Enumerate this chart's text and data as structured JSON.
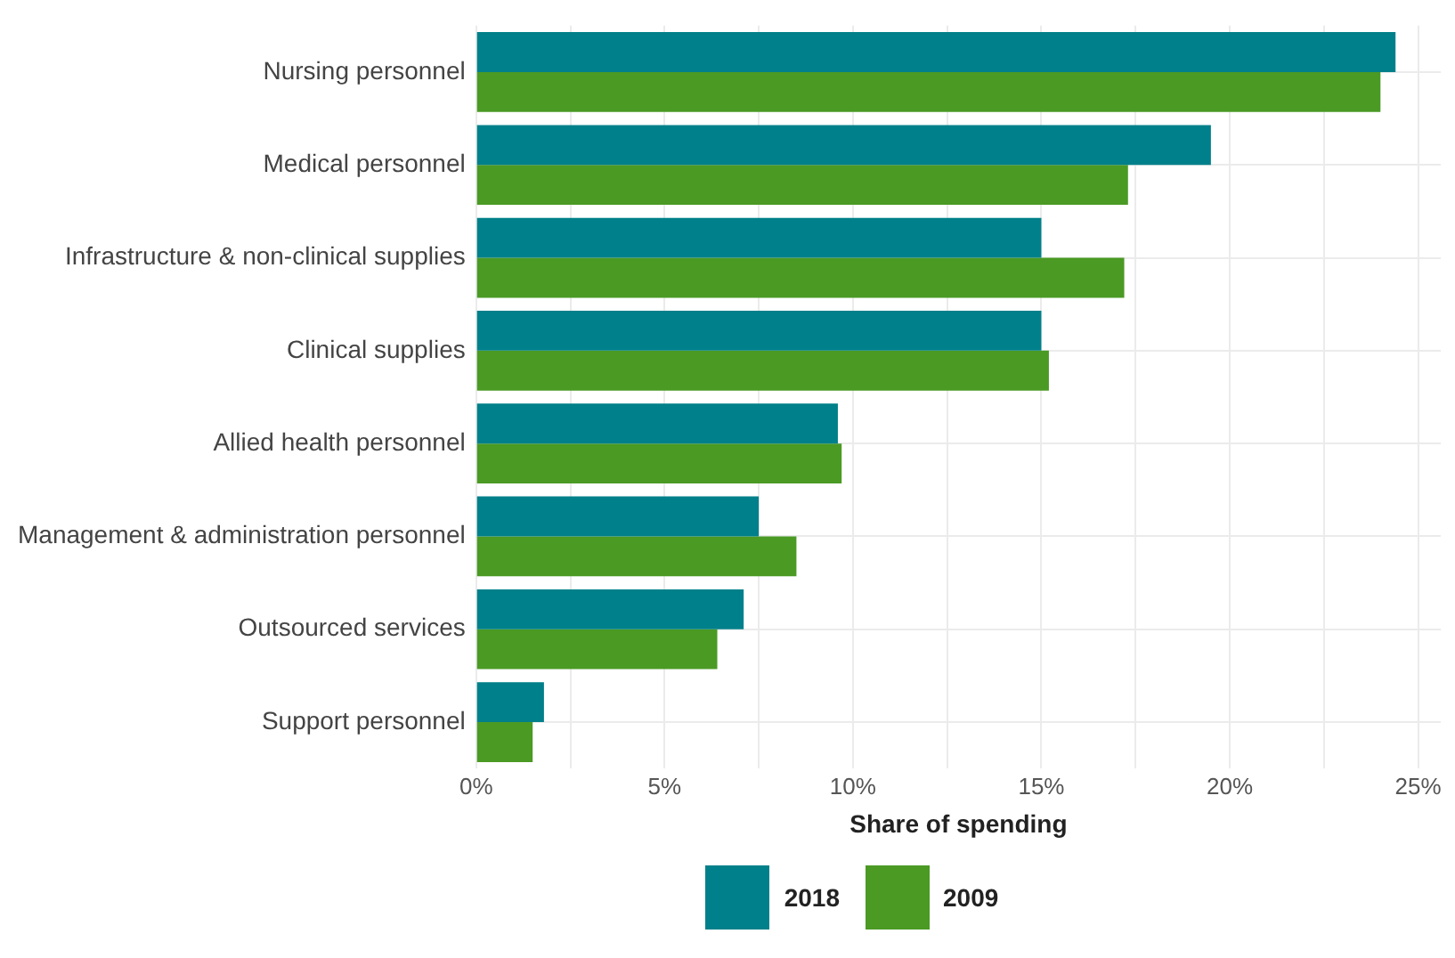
{
  "chart_data": {
    "type": "bar",
    "orientation": "horizontal",
    "categories": [
      "Nursing personnel",
      "Medical personnel",
      "Infrastructure & non-clinical supplies",
      "Clinical supplies",
      "Allied health personnel",
      "Management & administration personnel",
      "Outsourced services",
      "Support personnel"
    ],
    "series": [
      {
        "name": "2018",
        "color": "#00808a",
        "values": [
          24.4,
          19.5,
          15.0,
          15.0,
          9.6,
          7.5,
          7.1,
          1.8
        ]
      },
      {
        "name": "2009",
        "color": "#4a9a24",
        "values": [
          24.0,
          17.3,
          17.2,
          15.2,
          9.7,
          8.5,
          6.4,
          1.5
        ]
      }
    ],
    "xlabel": "Share of spending",
    "xlim": [
      0,
      25.6
    ],
    "xticks": [
      {
        "value": 0,
        "label": "0%"
      },
      {
        "value": 2.5,
        "label": null
      },
      {
        "value": 5,
        "label": "5%"
      },
      {
        "value": 7.5,
        "label": null
      },
      {
        "value": 10,
        "label": "10%"
      },
      {
        "value": 12.5,
        "label": null
      },
      {
        "value": 15,
        "label": "15%"
      },
      {
        "value": 17.5,
        "label": null
      },
      {
        "value": 20,
        "label": "20%"
      },
      {
        "value": 22.5,
        "label": null
      },
      {
        "value": 25,
        "label": "25%"
      }
    ],
    "grid": true,
    "legend": "bottom"
  }
}
